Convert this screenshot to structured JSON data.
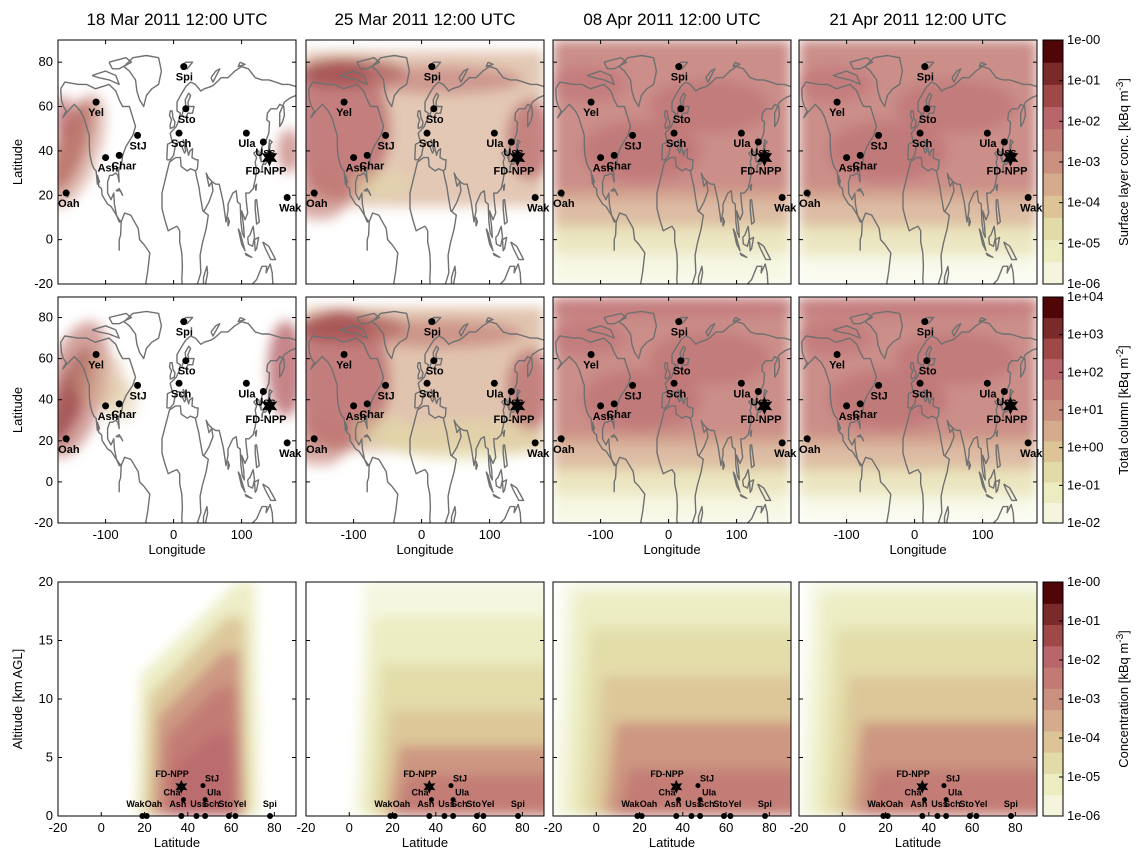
{
  "figure": {
    "columns": [
      "18 Mar 2011 12:00 UTC",
      "25 Mar 2011 12:00 UTC",
      "08 Apr 2011 12:00 UTC",
      "21 Apr 2011 12:00 UTC"
    ]
  },
  "colors": {
    "scale": [
      "#ffffff",
      "#f4f5dc",
      "#ebecc0",
      "#e2dba7",
      "#dcc497",
      "#d4ab8d",
      "#cb9180",
      "#c27a74",
      "#b8656b",
      "#9e4848",
      "#7a2a2a",
      "#4e0606"
    ],
    "coast": "#707070"
  },
  "chart_data": [
    {
      "type": "heatmap",
      "row": "surface layer maps",
      "xlabel": "",
      "ylabel": "Latitude",
      "xlim": [
        -170,
        180
      ],
      "ylim": [
        -20,
        90
      ],
      "yticks": [
        "-20",
        "0",
        "20",
        "40",
        "60",
        "80"
      ],
      "colorbar": {
        "label": "Surface layer conc. [kBq m",
        "exp": "-3",
        "label_end": "]",
        "ticks": [
          "1e-06",
          "1e-05",
          "1e-04",
          "1e-03",
          "1e-02",
          "1e-01",
          "1e-00"
        ]
      },
      "panels_fill_level": [
        0.15,
        0.45,
        0.75,
        0.8
      ]
    },
    {
      "type": "heatmap",
      "row": "total column maps",
      "xlabel": "Longitude",
      "ylabel": "Latitude",
      "xlim": [
        -170,
        180
      ],
      "ylim": [
        -20,
        90
      ],
      "xticks": [
        "-100",
        "0",
        "100"
      ],
      "yticks": [
        "-20",
        "0",
        "20",
        "40",
        "60",
        "80"
      ],
      "colorbar": {
        "label": "Total column [kBq m",
        "exp": "-2",
        "label_end": "]",
        "ticks": [
          "1e-02",
          "1e-01",
          "1e+00",
          "1e+01",
          "1e+02",
          "1e+03",
          "1e+04"
        ]
      },
      "panels_fill_level": [
        0.2,
        0.5,
        0.78,
        0.82
      ]
    },
    {
      "type": "heatmap",
      "row": "zonal cross sections",
      "xlabel": "Latitude",
      "ylabel": "Altitude [km AGL]",
      "xlim": [
        -20,
        90
      ],
      "ylim": [
        0,
        20
      ],
      "xticks": [
        "-20",
        "0",
        "20",
        "40",
        "60",
        "80"
      ],
      "yticks": [
        "0",
        "5",
        "10",
        "15",
        "20"
      ],
      "colorbar": {
        "label": "Concentration [kBq m",
        "exp": "-3",
        "label_end": "]",
        "ticks": [
          "1e-06",
          "1e-05",
          "1e-04",
          "1e-03",
          "1e-02",
          "1e-01",
          "1e-00"
        ]
      }
    }
  ],
  "stations": [
    {
      "name": "Spi",
      "lon": 15,
      "lat": 78
    },
    {
      "name": "Yel",
      "lon": -114,
      "lat": 62
    },
    {
      "name": "Sto",
      "lon": 18,
      "lat": 59
    },
    {
      "name": "StJ",
      "lon": -53,
      "lat": 47
    },
    {
      "name": "Sch",
      "lon": 8,
      "lat": 48
    },
    {
      "name": "Ula",
      "lon": 107,
      "lat": 48
    },
    {
      "name": "Uss",
      "lon": 132,
      "lat": 44
    },
    {
      "name": "Ash",
      "lon": -100,
      "lat": 37
    },
    {
      "name": "Char",
      "lon": -80,
      "lat": 38
    },
    {
      "name": "FD-NPP",
      "lon": 141,
      "lat": 37
    },
    {
      "name": "Oah",
      "lon": -158,
      "lat": 21
    },
    {
      "name": "Wak",
      "lon": 167,
      "lat": 19
    }
  ],
  "section_stations": {
    "labels": [
      "Wak",
      "Oah",
      "Ash",
      "Uss",
      "Sch",
      "Sto",
      "Yel",
      "Spi"
    ],
    "lats": [
      19,
      21,
      37,
      44,
      48,
      59,
      62,
      78
    ],
    "upper": [
      {
        "name": "FD-NPP",
        "lat": 37,
        "alt": 2.5,
        "star": true
      },
      {
        "name": "Cha",
        "lat": 38,
        "alt": 1.4
      },
      {
        "name": "StJ",
        "lat": 47,
        "alt": 2.6
      },
      {
        "name": "Ula",
        "lat": 48,
        "alt": 1.4
      }
    ]
  }
}
